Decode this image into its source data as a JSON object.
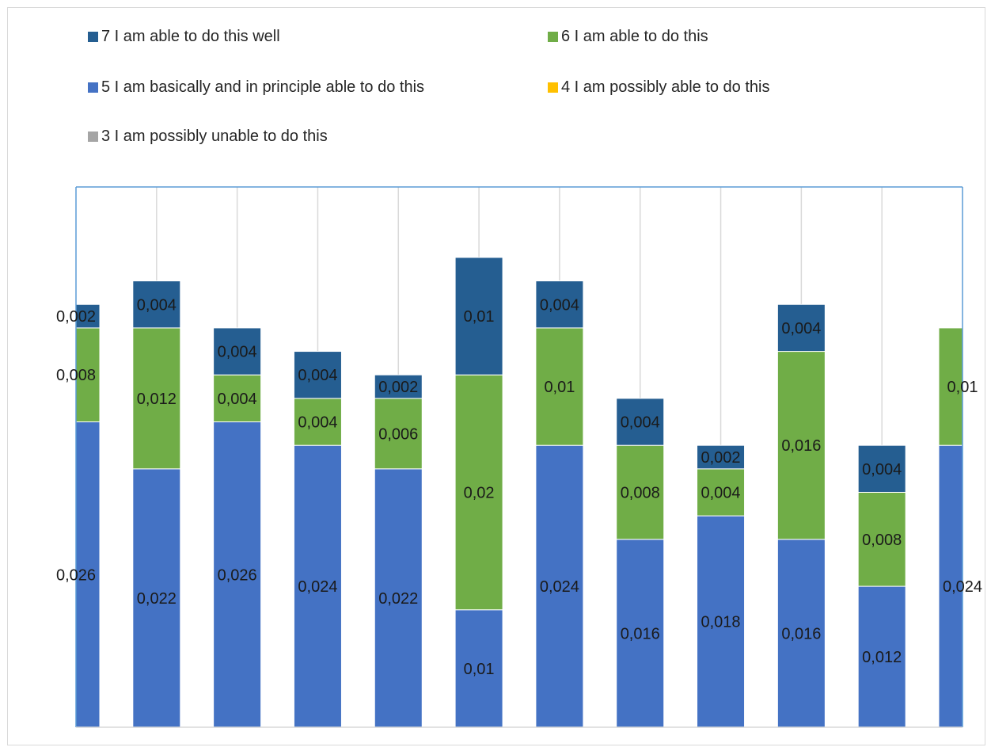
{
  "chart_data": {
    "type": "bar",
    "stacked": true,
    "categories": [
      "",
      "",
      "",
      "",
      "",
      "",
      "",
      "",
      "",
      "",
      "",
      ""
    ],
    "series": [
      {
        "name": "3 I am possibly unable to do this",
        "color": "#a5a5a5",
        "values": [
          0,
          0,
          0,
          0,
          0,
          0,
          0,
          0,
          0,
          0,
          0,
          0
        ]
      },
      {
        "name": "4 I am possibly able to do this",
        "color": "#ffc000",
        "values": [
          0,
          0,
          0,
          0,
          0,
          0,
          0,
          0,
          0,
          0,
          0,
          0
        ]
      },
      {
        "name": "5 I am basically and in principle able to do this",
        "color": "#4472c4",
        "values": [
          0.026,
          0.022,
          0.026,
          0.024,
          0.022,
          0.01,
          0.024,
          0.016,
          0.018,
          0.016,
          0.012,
          0.024
        ],
        "labels": [
          "0,026",
          "0,022",
          "0,026",
          "0,024",
          "0,022",
          "0,01",
          "0,024",
          "0,016",
          "0,018",
          "0,016",
          "0,012",
          "0,024"
        ]
      },
      {
        "name": "6 I am able to do this",
        "color": "#70ad47",
        "values": [
          0.008,
          0.012,
          0.004,
          0.004,
          0.006,
          0.02,
          0.01,
          0.008,
          0.004,
          0.016,
          0.008,
          0.01
        ],
        "labels": [
          "0,008",
          "0,012",
          "0,004",
          "0,004",
          "0,006",
          "0,02",
          "0,01",
          "0,008",
          "0,004",
          "0,016",
          "0,008",
          "0,01"
        ]
      },
      {
        "name": "7 I am able to do this well",
        "color": "#255e91",
        "values": [
          0.002,
          0.004,
          0.004,
          0.004,
          0.002,
          0.01,
          0.004,
          0.004,
          0.002,
          0.004,
          0.004,
          0
        ],
        "labels": [
          "0,002",
          "0,004",
          "0,004",
          "0,004",
          "0,002",
          "0,01",
          "0,004",
          "0,004",
          "0,002",
          "0,004",
          "0,004",
          ""
        ]
      }
    ],
    "legend": [
      {
        "name": "7 I am able to do this well",
        "color": "#255e91"
      },
      {
        "name": "6 I am able to do this",
        "color": "#70ad47"
      },
      {
        "name": "5 I am basically and in principle able to do this",
        "color": "#4472c4"
      },
      {
        "name": "4 I am possibly able to do this",
        "color": "#ffc000"
      },
      {
        "name": "3 I am possibly unable to do this",
        "color": "#a5a5a5"
      }
    ],
    "legend_position": "top",
    "ylim": [
      0,
      0.046
    ],
    "grid": "vertical",
    "gridline_color": "#d9d9d9",
    "axis_color": "#5b9bd5",
    "title": "",
    "xlabel": "",
    "ylabel": ""
  }
}
